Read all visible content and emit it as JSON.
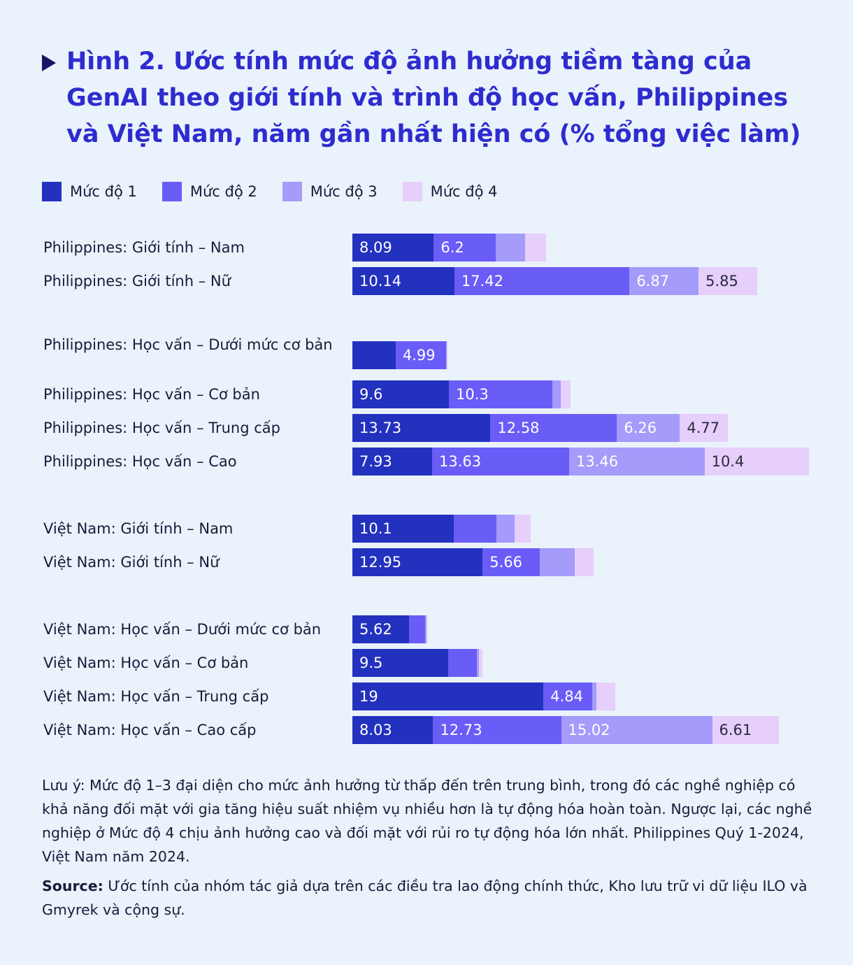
{
  "title": "Hình 2. Ước tính mức độ ảnh hưởng tiềm tàng của GenAI theo giới tính và trình độ học vấn, Philippines và Việt Nam, năm gần nhất hiện có (% tổng việc làm)",
  "legend": [
    {
      "label": "Mức độ 1",
      "color": "#2331bf"
    },
    {
      "label": "Mức độ 2",
      "color": "#6a5cf7"
    },
    {
      "label": "Mức độ 3",
      "color": "#a59bfa"
    },
    {
      "label": "Mức độ 4",
      "color": "#e6cffb"
    }
  ],
  "note": "Lưu ý: Mức độ 1–3 đại diện cho mức ảnh hưởng từ thấp đến trên trung bình, trong đó các nghề nghiệp có khả năng đối mặt với gia tăng hiệu suất nhiệm vụ nhiều hơn là tự động hóa hoàn toàn. Ngược lại, các nghề nghiệp ở Mức độ 4 chịu ảnh hưởng cao và đối mặt với rủi ro tự động hóa lớn nhất. Philippines Quý 1-2024, Việt Nam năm 2024.",
  "source": {
    "label": "Source:",
    "text": " Ước tính của nhóm tác giả dựa trên các điều tra lao động chính thức, Kho lưu trữ vi dữ liệu ILO và Gmyrek và cộng sự."
  },
  "chart_data": {
    "type": "bar",
    "orientation": "horizontal",
    "stacked": true,
    "series_names": [
      "Mức độ 1",
      "Mức độ 2",
      "Mức độ 3",
      "Mức độ 4"
    ],
    "rows": [
      {
        "label": "Philippines: Giới tính – Nam",
        "values": [
          8.09,
          6.2,
          2.9,
          2.1
        ],
        "labels": [
          "8.09",
          "6.2",
          "",
          ""
        ]
      },
      {
        "label": "Philippines: Giới tính – Nữ",
        "values": [
          10.14,
          17.42,
          6.87,
          5.85
        ],
        "labels": [
          "10.14",
          "17.42",
          "6.87",
          "5.85"
        ]
      },
      {
        "label": "Philippines: Học vấn – Dưới mức cơ bản",
        "values": [
          4.3,
          4.99,
          0.1,
          0.05
        ],
        "labels": [
          "",
          "4.99",
          "",
          ""
        ]
      },
      {
        "label": "Philippines: Học vấn – Cơ bản",
        "values": [
          9.6,
          10.3,
          0.8,
          1.0
        ],
        "labels": [
          "9.6",
          "10.3",
          "",
          ""
        ]
      },
      {
        "label": "Philippines: Học vấn – Trung cấp",
        "values": [
          13.73,
          12.58,
          6.26,
          4.77
        ],
        "labels": [
          "13.73",
          "12.58",
          "6.26",
          "4.77"
        ]
      },
      {
        "label": "Philippines: Học vấn – Cao",
        "values": [
          7.93,
          13.63,
          13.46,
          10.4
        ],
        "labels": [
          "7.93",
          "13.63",
          "13.46",
          "10.4"
        ]
      },
      {
        "label": "Việt Nam: Giới tính – Nam",
        "values": [
          10.1,
          4.2,
          1.8,
          1.6
        ],
        "labels": [
          "10.1",
          "",
          "",
          ""
        ]
      },
      {
        "label": "Việt Nam: Giới tính – Nữ",
        "values": [
          12.95,
          5.66,
          3.5,
          1.9
        ],
        "labels": [
          "12.95",
          "5.66",
          "",
          ""
        ]
      },
      {
        "label": "Việt Nam: Học vấn – Dưới mức cơ bản",
        "values": [
          5.62,
          1.6,
          0.15,
          0.05
        ],
        "labels": [
          "5.62",
          "",
          "",
          ""
        ]
      },
      {
        "label": "Việt Nam: Học vấn – Cơ bản",
        "values": [
          9.5,
          2.9,
          0.2,
          0.3
        ],
        "labels": [
          "9.5",
          "",
          "",
          ""
        ]
      },
      {
        "label": "Việt Nam: Học vấn – Trung cấp",
        "values": [
          19,
          4.84,
          0.4,
          1.9
        ],
        "labels": [
          "19",
          "4.84",
          "",
          ""
        ]
      },
      {
        "label": "Việt Nam: Học vấn – Cao cấp",
        "values": [
          8.03,
          12.73,
          15.02,
          6.61
        ],
        "labels": [
          "8.03",
          "12.73",
          "15.02",
          "6.61"
        ]
      }
    ],
    "xlim": [
      0,
      45.5
    ]
  }
}
